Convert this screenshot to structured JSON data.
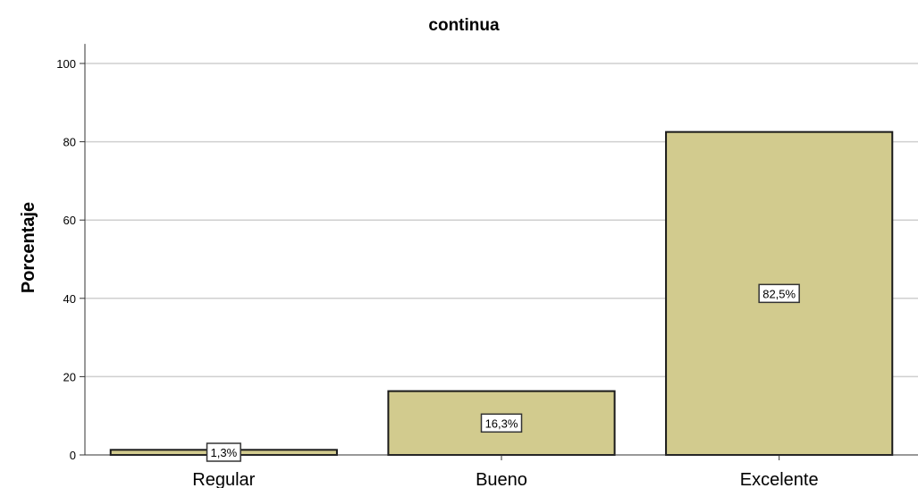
{
  "chart_data": {
    "type": "bar",
    "title": "continua",
    "xlabel": "",
    "ylabel": "Porcentaje",
    "categories": [
      "Regular",
      "Bueno",
      "Excelente"
    ],
    "values": [
      1.3,
      16.3,
      82.5
    ],
    "data_labels": [
      "1,3%",
      "16,3%",
      "82,5%"
    ],
    "ylim": [
      0,
      105
    ],
    "yticks": [
      0,
      20,
      40,
      60,
      80,
      100
    ],
    "ytick_labels": [
      "0",
      "20",
      "40",
      "60",
      "80",
      "100"
    ],
    "grid": true,
    "colors": {
      "bar_fill": "#d2cb8e",
      "bar_stroke": "#1a1a1a",
      "grid": "#cfcfcf"
    }
  }
}
